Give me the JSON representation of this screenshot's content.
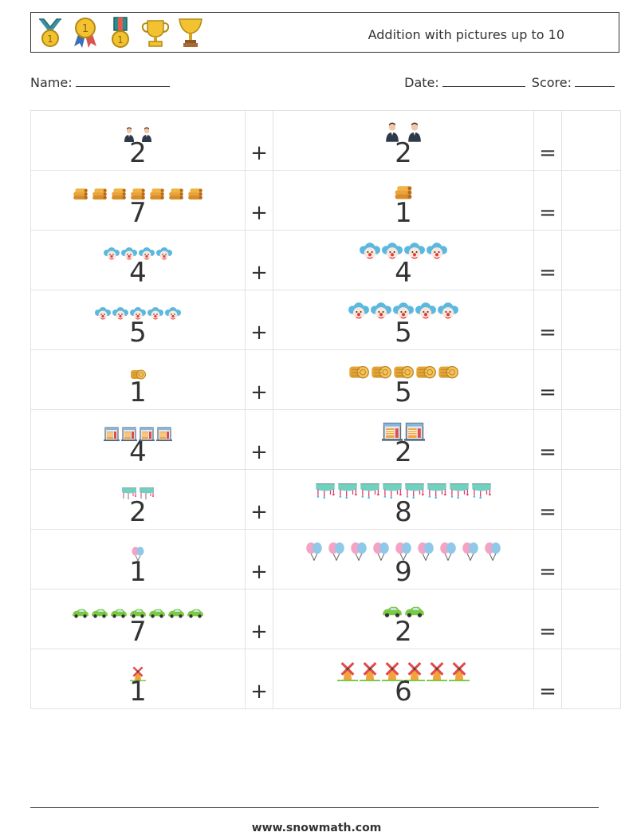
{
  "header": {
    "title": "Addition with pictures up to 10",
    "icons": [
      "medal-ribbon-icon",
      "medal-rosette-icon",
      "medal-bar-icon",
      "trophy-cup-icon",
      "trophy-goblet-icon"
    ]
  },
  "info": {
    "name_label": "Name:",
    "date_label": "Date:",
    "score_label": "Score:"
  },
  "rows": [
    {
      "a": "2",
      "a_icon": "person-icon",
      "b": "2",
      "b_icon": "person-icon"
    },
    {
      "a": "7",
      "a_icon": "firewood-icon",
      "b": "1",
      "b_icon": "firewood-icon"
    },
    {
      "a": "4",
      "a_icon": "clown-icon",
      "b": "4",
      "b_icon": "clown-icon"
    },
    {
      "a": "5",
      "a_icon": "clown-icon",
      "b": "5",
      "b_icon": "clown-icon"
    },
    {
      "a": "1",
      "a_icon": "hay-bale-icon",
      "b": "5",
      "b_icon": "hay-bale-icon"
    },
    {
      "a": "4",
      "a_icon": "window-icon",
      "b": "2",
      "b_icon": "window-icon"
    },
    {
      "a": "2",
      "a_icon": "bunting-icon",
      "b": "8",
      "b_icon": "bunting-icon"
    },
    {
      "a": "1",
      "a_icon": "balloons-icon",
      "b": "9",
      "b_icon": "balloons-icon"
    },
    {
      "a": "7",
      "a_icon": "car-icon",
      "b": "2",
      "b_icon": "car-icon"
    },
    {
      "a": "1",
      "a_icon": "windmill-icon",
      "b": "6",
      "b_icon": "windmill-icon"
    }
  ],
  "symbols": {
    "plus": "+",
    "equals": "="
  },
  "footer": {
    "url": "www.snowmath.com"
  }
}
